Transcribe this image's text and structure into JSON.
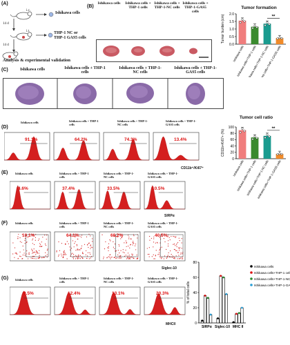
{
  "panel_labels": {
    "a": "(A)",
    "b": "(B)",
    "c": "(C)",
    "d": "(D)",
    "e": "(E)",
    "f": "(F)",
    "g": "(G)"
  },
  "schematic": {
    "step1_route": "i.c.",
    "step1_label": "Ishikawa cells",
    "step2_time": "14 d",
    "step2_route": "i.t.",
    "step2_label_line1": "THP-1 NC or",
    "step2_label_line2": "THP-1 GAS5 cells",
    "step3_time": "14 d",
    "step3_label": "Analysis & experimental validation"
  },
  "group_headers": {
    "g1": "Ishikawa cells",
    "g2": "Ishikawa cells + THP-1 cells",
    "g3": "Ishikawa cells + THP-1-NC cells",
    "g4": "Ishikawa cells + THP-1-GAS5 cells"
  },
  "c_headers": {
    "g1": "Ishikawa cells",
    "g2": "Ishikawa cells + THP-1 cells",
    "g3": "Ishikawa cells + THP-1-NC cells",
    "g4": "Ishikawa cells + THP-1-GAS5 cells"
  },
  "flow_headers_d": {
    "g1": "Ishikawa cells",
    "g2": "Ishikawa cells + THP-1 cells",
    "g3": "Ishikawa cells + THP-1-NC cells",
    "g4": "Ishikawa cells + THP-1-GAS5 cells"
  },
  "flow_headers": {
    "g1": "Ishikawa cells",
    "g2": "Ishikawa cells + THP-1 cells",
    "g3": "Ishikawa cells + THP-1-NC cells",
    "g4": "Ishikawa cells + THP-1-GAS5 cells"
  },
  "flow_d": {
    "axis": "CD11b⁺/Ki67⁺",
    "pcts": [
      "91.1%",
      "64.2%",
      "74.3%",
      "13.4%"
    ]
  },
  "flow_e": {
    "axis": "SIRPα",
    "pcts": [
      "4.6%",
      "37.4%",
      "33.5%",
      "10.5%"
    ]
  },
  "flow_f": {
    "axis": "Siglec-10",
    "pcts": [
      "10.1%",
      "64.1%",
      "68.2%",
      "40.5%"
    ]
  },
  "flow_g": {
    "axis": "MHCII",
    "pcts": [
      "0.5%",
      "12.4%",
      "13.1%",
      "20.3%"
    ]
  },
  "colors": {
    "red": "#d41f1f",
    "g1": "#f07d7d",
    "g2": "#3a8a2e",
    "g3": "#1a9b8f",
    "g4": "#f08b2a",
    "violet": "#8e4aa3"
  },
  "chart_data": [
    {
      "type": "bar",
      "title": "Tumor formation",
      "ylabel": "Tumor burden (cm)",
      "categories": [
        "Ishikawa cells",
        "Ishikawa cells+THP-1 cells",
        "Ishikawa cells+THP-1-NC cells",
        "Ishikawa cells+THP-1-GAS5 cells"
      ],
      "values": [
        1.55,
        1.15,
        1.35,
        0.4
      ],
      "ylim": [
        0,
        2.0
      ],
      "yticks": [
        "0.0",
        "0.5",
        "1.0",
        "1.5",
        "2.0"
      ],
      "significance": "**"
    },
    {
      "type": "bar",
      "title": "Tumor cell ratio",
      "ylabel": "CD11b+Ki67+ (%)",
      "categories": [
        "Ishikawa cells",
        "Ishikawa cells+THP-1 cells",
        "Ishikawa cells+THP-1-NC cells",
        "Ishikawa cells+THP-1-GAS5 cells"
      ],
      "values": [
        90,
        67,
        72,
        15
      ],
      "ylim": [
        0,
        100
      ],
      "yticks": [
        "0",
        "20",
        "40",
        "60",
        "80",
        "100"
      ],
      "significance": "**"
    },
    {
      "type": "bar",
      "ylabel": "% of total cells",
      "categories": [
        "SIRPα",
        "Siglec-10",
        "MHC II"
      ],
      "series": [
        {
          "name": "Ishikawa cells",
          "values": [
            3,
            6,
            1
          ]
        },
        {
          "name": "Ishikawa cells+THP-1 cells",
          "values": [
            36,
            62,
            12
          ]
        },
        {
          "name": "Ishikawa cells+THP-1-NC cells",
          "values": [
            33,
            60,
            13
          ]
        },
        {
          "name": "Ishikawa cells+THP-1-GAS5",
          "values": [
            11,
            38,
            20
          ]
        }
      ],
      "ylim": [
        0,
        80
      ],
      "yticks": [
        "0",
        "20",
        "40",
        "60",
        "80"
      ]
    }
  ]
}
